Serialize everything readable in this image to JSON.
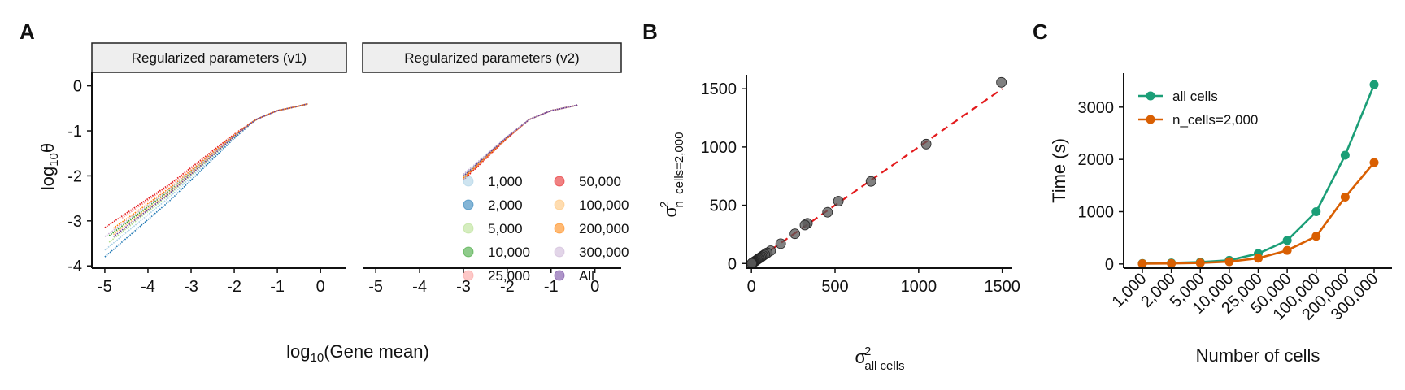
{
  "figure": {
    "panel_letters": [
      "A",
      "B",
      "C"
    ]
  },
  "colors": {
    "cell_palette": [
      "#a6cee3",
      "#1f78b4",
      "#b2df8a",
      "#33a02c",
      "#fb9a99",
      "#e31a1c",
      "#fdbf6f",
      "#ff7f00",
      "#cab2d6",
      "#6a3d9a"
    ],
    "all_cells": "#1b9e77",
    "n_cells": "#d95f02",
    "dashed_line": "#e31a1c",
    "point_gray": "#555555",
    "strip_bg": "#eeeeee"
  },
  "chart_data": [
    {
      "panel": "A",
      "type": "line",
      "facets": [
        "Regularized parameters (v1)",
        "Regularized parameters (v2)"
      ],
      "xlabel_main": "log",
      "xlabel_sub": "10",
      "xlabel_rest": "(Gene mean)",
      "ylabel_main": "log",
      "ylabel_sub": "10",
      "ylabel_rest": "θ",
      "xlim": [
        -5.3,
        0.6
      ],
      "ylim": [
        -4.05,
        0.3
      ],
      "x_ticks": [
        -5,
        -4,
        -3,
        -2,
        -1,
        0
      ],
      "x_tick_labels": [
        "-5",
        "-4",
        "-3",
        "-2",
        "-1",
        "0"
      ],
      "y_ticks": [
        0,
        -1,
        -2,
        -3,
        -4
      ],
      "y_tick_labels": [
        "0",
        "-1",
        "-2",
        "-3",
        "-4"
      ],
      "legend_labels": [
        "1,000",
        "2,000",
        "5,000",
        "10,000",
        "25,000",
        "50,000",
        "100,000",
        "200,000",
        "300,000",
        "All"
      ],
      "curve_base": [
        [
          -5,
          -3.7
        ],
        [
          -4.5,
          -3.3
        ],
        [
          -4,
          -2.9
        ],
        [
          -3.5,
          -2.5
        ],
        [
          -3,
          -2.05
        ],
        [
          -2.5,
          -1.6
        ],
        [
          -2,
          -1.15
        ],
        [
          -1.5,
          -0.75
        ],
        [
          -1,
          -0.55
        ],
        [
          -0.5,
          -0.45
        ],
        [
          -0.3,
          -0.4
        ]
      ],
      "v1_series_offsets": [
        {
          "name": "1,000",
          "start": -5.0,
          "end": -0.3,
          "offset": 0.05
        },
        {
          "name": "2,000",
          "start": -5.0,
          "end": -0.3,
          "offset": -0.1
        },
        {
          "name": "5,000",
          "start": -4.9,
          "end": -0.3,
          "offset": 0.15
        },
        {
          "name": "10,000",
          "start": -4.9,
          "end": -0.3,
          "offset": 0.3
        },
        {
          "name": "25,000",
          "start": -4.6,
          "end": -0.3,
          "offset": 0.5
        },
        {
          "name": "50,000",
          "start": -5.0,
          "end": -0.3,
          "offset": 0.55
        },
        {
          "name": "100,000",
          "start": -4.8,
          "end": -0.3,
          "offset": 0.25
        },
        {
          "name": "200,000",
          "start": -4.8,
          "end": -0.3,
          "offset": 0.4
        },
        {
          "name": "300,000",
          "start": -5.0,
          "end": -0.3,
          "offset": 0.35
        },
        {
          "name": "All",
          "start": -4.8,
          "end": -0.3,
          "offset": 0.2
        }
      ],
      "v2_series_offsets": [
        {
          "name": "1,000",
          "start": -3.0,
          "end": -0.4,
          "offset": 0.15
        },
        {
          "name": "2,000",
          "start": -3.0,
          "end": -0.4,
          "offset": 0.05
        },
        {
          "name": "5,000",
          "start": -3.0,
          "end": -0.4,
          "offset": 0.1
        },
        {
          "name": "10,000",
          "start": -3.0,
          "end": -0.4,
          "offset": 0.0
        },
        {
          "name": "25,000",
          "start": -3.0,
          "end": -0.4,
          "offset": -0.05
        },
        {
          "name": "50,000",
          "start": -3.0,
          "end": -0.4,
          "offset": -0.1
        },
        {
          "name": "100,000",
          "start": -3.0,
          "end": -0.4,
          "offset": 0.05
        },
        {
          "name": "200,000",
          "start": -3.0,
          "end": -0.4,
          "offset": 0.0
        },
        {
          "name": "300,000",
          "start": -3.0,
          "end": -0.4,
          "offset": 0.2
        },
        {
          "name": "All",
          "start": -3.0,
          "end": -0.4,
          "offset": 0.1
        }
      ]
    },
    {
      "panel": "B",
      "type": "scatter",
      "xlabel_main": "σ",
      "xlabel_sup": "2",
      "xlabel_sub": "all cells",
      "ylabel_main": "σ",
      "ylabel_sup": "2",
      "ylabel_sub": "n_cells=2,000",
      "xlim": [
        -30,
        1560
      ],
      "ylim": [
        -40,
        1620
      ],
      "x_ticks": [
        0,
        500,
        1000,
        1500
      ],
      "x_tick_labels": [
        "0",
        "500",
        "1000",
        "1500"
      ],
      "y_ticks": [
        0,
        500,
        1000,
        1500
      ],
      "y_tick_labels": [
        "0",
        "500",
        "1000",
        "1500"
      ],
      "reference_line": {
        "intercept": 0,
        "slope": 1,
        "style": "dashed"
      },
      "x": [
        1495,
        1045,
        715,
        520,
        455,
        335,
        320,
        260,
        175,
        115,
        95,
        80,
        70,
        62,
        55,
        48,
        42,
        36,
        30,
        25,
        20,
        16,
        12,
        8,
        5,
        2
      ],
      "y": [
        1555,
        1025,
        705,
        535,
        440,
        345,
        330,
        255,
        170,
        110,
        92,
        78,
        68,
        60,
        52,
        46,
        40,
        34,
        28,
        23,
        18,
        14,
        10,
        7,
        4,
        1
      ]
    },
    {
      "panel": "C",
      "type": "line",
      "xlabel": "Number of cells",
      "ylabel": "Time (s)",
      "categories": [
        "1,000",
        "2,000",
        "5,000",
        "10,000",
        "25,000",
        "50,000",
        "100,000",
        "200,000",
        "300,000"
      ],
      "ylim": [
        -80,
        3650
      ],
      "y_ticks": [
        0,
        1000,
        2000,
        3000
      ],
      "y_tick_labels": [
        "0",
        "1000",
        "2000",
        "3000"
      ],
      "series": [
        {
          "name": "all cells",
          "values": [
            10,
            20,
            35,
            70,
            200,
            450,
            1000,
            2080,
            3430
          ]
        },
        {
          "name": "n_cells=2,000",
          "values": [
            5,
            10,
            20,
            45,
            110,
            260,
            530,
            1280,
            1940
          ]
        }
      ]
    }
  ]
}
